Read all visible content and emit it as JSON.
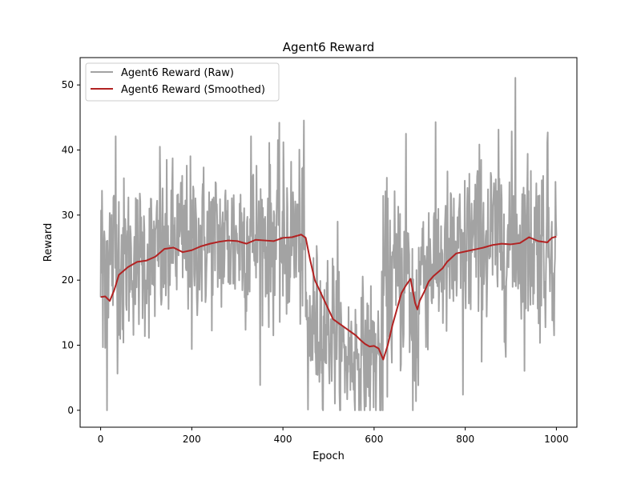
{
  "chart_data": {
    "type": "line",
    "title": "Agent6 Reward",
    "xlabel": "Epoch",
    "ylabel": "Reward",
    "xlim": [
      -45,
      1045
    ],
    "ylim": [
      -2.6,
      54.2
    ],
    "x_ticks": [
      0,
      200,
      400,
      600,
      800,
      1000
    ],
    "y_ticks": [
      0,
      10,
      20,
      30,
      40,
      50
    ],
    "grid": false,
    "legend_position": "top-left",
    "colors": {
      "raw": "#a3a3a3",
      "smoothed": "#b22222"
    },
    "series": [
      {
        "name": "Agent6 Reward (Raw)",
        "kind": "raw",
        "segments": [
          {
            "x0": 0,
            "x1": 50,
            "mean": 24,
            "sd": 7
          },
          {
            "x0": 50,
            "x1": 150,
            "mean": 23.5,
            "sd": 6
          },
          {
            "x0": 150,
            "x1": 300,
            "mean": 26,
            "sd": 6
          },
          {
            "x0": 300,
            "x1": 450,
            "mean": 26.5,
            "sd": 6.5
          },
          {
            "x0": 450,
            "x1": 520,
            "mean": 13,
            "sd": 6
          },
          {
            "x0": 520,
            "x1": 620,
            "mean": 8.5,
            "sd": 5.5
          },
          {
            "x0": 620,
            "x1": 680,
            "mean": 20,
            "sd": 7
          },
          {
            "x0": 680,
            "x1": 700,
            "mean": 14,
            "sd": 9
          },
          {
            "x0": 700,
            "x1": 800,
            "mean": 23,
            "sd": 6.5
          },
          {
            "x0": 800,
            "x1": 1000,
            "mean": 26,
            "sd": 7
          }
        ],
        "spikes": [
          {
            "x": 0,
            "y": 17.4
          },
          {
            "x": 5,
            "y": 9.7
          },
          {
            "x": 8,
            "y": 27.5
          },
          {
            "x": 14,
            "y": 0
          },
          {
            "x": 33,
            "y": 42.1
          },
          {
            "x": 50,
            "y": 10.4
          },
          {
            "x": 130,
            "y": 40.5
          },
          {
            "x": 200,
            "y": 9.4
          },
          {
            "x": 330,
            "y": 42.1
          },
          {
            "x": 400,
            "y": 17.6
          },
          {
            "x": 455,
            "y": 0.1
          },
          {
            "x": 520,
            "y": 29
          },
          {
            "x": 615,
            "y": 0
          },
          {
            "x": 670,
            "y": 42.5
          },
          {
            "x": 685,
            "y": 0
          },
          {
            "x": 795,
            "y": 2.4
          },
          {
            "x": 910,
            "y": 51.1
          },
          {
            "x": 980,
            "y": 41.2
          },
          {
            "x": 1000,
            "y": 26.8
          }
        ]
      },
      {
        "name": "Agent6 Reward (Smoothed)",
        "kind": "smoothed",
        "x": [
          0,
          10,
          20,
          30,
          40,
          60,
          80,
          100,
          120,
          140,
          160,
          180,
          200,
          220,
          240,
          260,
          280,
          300,
          320,
          340,
          360,
          380,
          400,
          420,
          440,
          450,
          460,
          470,
          480,
          490,
          500,
          510,
          520,
          530,
          540,
          550,
          560,
          570,
          580,
          590,
          600,
          610,
          620,
          630,
          640,
          650,
          660,
          670,
          680,
          690,
          695,
          700,
          710,
          720,
          730,
          740,
          750,
          760,
          780,
          800,
          820,
          840,
          860,
          880,
          900,
          920,
          940,
          960,
          980,
          990,
          1000
        ],
        "y": [
          17.4,
          17.5,
          16.8,
          18.5,
          20.8,
          22.0,
          22.8,
          23.0,
          23.6,
          24.8,
          25.0,
          24.3,
          24.6,
          25.2,
          25.6,
          25.9,
          26.1,
          26.0,
          25.6,
          26.2,
          26.1,
          26.0,
          26.5,
          26.6,
          27.0,
          26.5,
          23.0,
          20.0,
          18.5,
          17.0,
          15.5,
          14.0,
          13.5,
          13.0,
          12.5,
          12.0,
          11.5,
          10.8,
          10.2,
          9.8,
          9.9,
          9.5,
          7.8,
          10.0,
          13.0,
          15.5,
          18.0,
          19.2,
          20.2,
          16.5,
          15.5,
          16.8,
          18.2,
          19.8,
          20.6,
          21.2,
          21.8,
          22.8,
          24.1,
          24.4,
          24.7,
          25.0,
          25.4,
          25.6,
          25.5,
          25.7,
          26.6,
          26.0,
          25.8,
          26.5,
          26.7
        ]
      }
    ]
  }
}
